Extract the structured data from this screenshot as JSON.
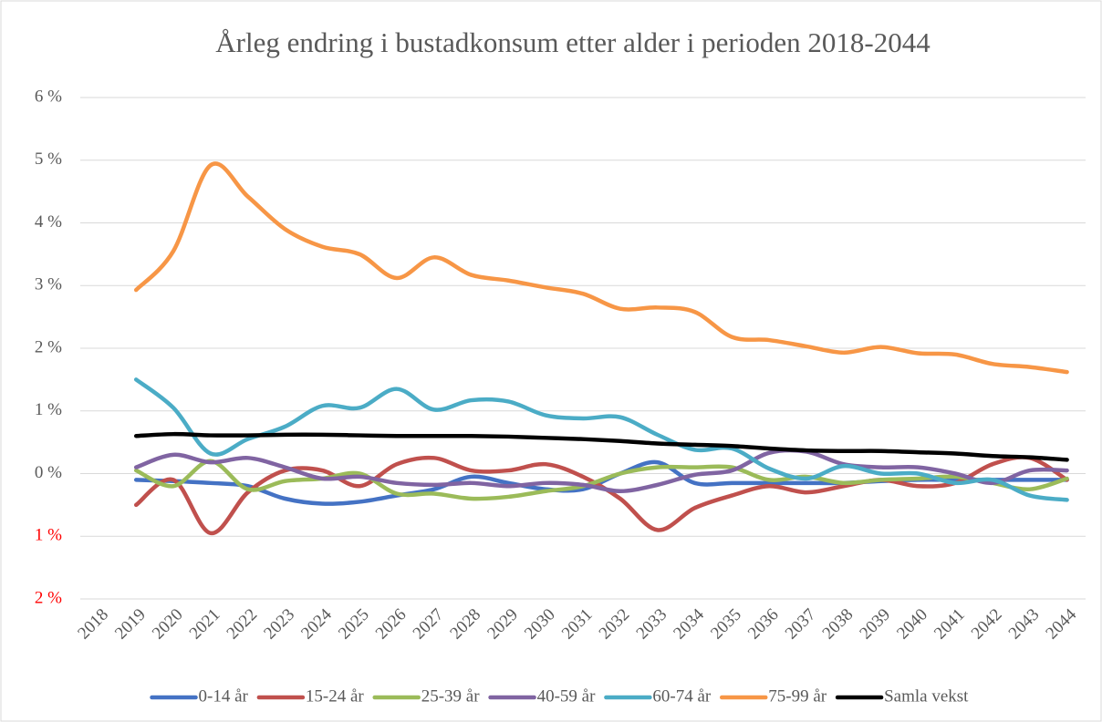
{
  "chart_data": {
    "type": "line",
    "title": "Årleg endring i bustadkonsum etter alder i perioden 2018-2044",
    "categories": [
      "2018",
      "2019",
      "2020",
      "2021",
      "2022",
      "2023",
      "2024",
      "2025",
      "2026",
      "2027",
      "2028",
      "2029",
      "2030",
      "2031",
      "2032",
      "2033",
      "2034",
      "2035",
      "2036",
      "2037",
      "2038",
      "2039",
      "2040",
      "2041",
      "2042",
      "2043",
      "2044"
    ],
    "ylim": [
      -2,
      6
    ],
    "yticks": [
      {
        "value": -2,
        "label": "2 %"
      },
      {
        "value": -1,
        "label": "1 %"
      },
      {
        "value": 0,
        "label": "0 %"
      },
      {
        "value": 1,
        "label": "1 %"
      },
      {
        "value": 2,
        "label": "2 %"
      },
      {
        "value": 3,
        "label": "3 %"
      },
      {
        "value": 4,
        "label": "4 %"
      },
      {
        "value": 5,
        "label": "5 %"
      },
      {
        "value": 6,
        "label": "6 %"
      }
    ],
    "negative_tick_color": "#ff0000",
    "grid": true,
    "smooth": true,
    "legend": "bottom",
    "series": [
      {
        "name": "0-14 år",
        "color": "#4472c4",
        "values": [
          null,
          -0.1,
          -0.12,
          -0.15,
          -0.2,
          -0.4,
          -0.48,
          -0.45,
          -0.35,
          -0.25,
          -0.05,
          -0.15,
          -0.25,
          -0.25,
          0.0,
          0.18,
          -0.15,
          -0.15,
          -0.15,
          -0.15,
          -0.15,
          -0.12,
          -0.1,
          -0.1,
          -0.1,
          -0.1,
          -0.1
        ]
      },
      {
        "name": "15-24 år",
        "color": "#c0504d",
        "values": [
          null,
          -0.5,
          -0.1,
          -0.95,
          -0.3,
          0.05,
          0.05,
          -0.2,
          0.15,
          0.25,
          0.05,
          0.05,
          0.15,
          -0.05,
          -0.4,
          -0.9,
          -0.55,
          -0.35,
          -0.2,
          -0.3,
          -0.2,
          -0.1,
          -0.2,
          -0.15,
          0.15,
          0.25,
          -0.1
        ]
      },
      {
        "name": "25-39 år",
        "color": "#9bbb59",
        "values": [
          null,
          0.05,
          -0.2,
          0.2,
          -0.25,
          -0.12,
          -0.08,
          0.0,
          -0.32,
          -0.32,
          -0.4,
          -0.37,
          -0.28,
          -0.2,
          0.0,
          0.1,
          0.1,
          0.1,
          -0.1,
          -0.05,
          -0.15,
          -0.1,
          -0.08,
          -0.05,
          -0.15,
          -0.25,
          -0.08
        ]
      },
      {
        "name": "40-59 år",
        "color": "#8064a2",
        "values": [
          null,
          0.1,
          0.3,
          0.18,
          0.25,
          0.1,
          -0.08,
          -0.05,
          -0.15,
          -0.18,
          -0.15,
          -0.2,
          -0.15,
          -0.18,
          -0.28,
          -0.18,
          -0.02,
          0.05,
          0.33,
          0.35,
          0.15,
          0.1,
          0.1,
          0.0,
          -0.15,
          0.05,
          0.05
        ]
      },
      {
        "name": "60-74 år",
        "color": "#4bacc6",
        "values": [
          null,
          1.5,
          1.05,
          0.32,
          0.55,
          0.75,
          1.08,
          1.05,
          1.35,
          1.02,
          1.17,
          1.15,
          0.93,
          0.88,
          0.9,
          0.62,
          0.38,
          0.4,
          0.08,
          -0.08,
          0.12,
          0.0,
          0.0,
          -0.15,
          -0.1,
          -0.35,
          -0.42
        ]
      },
      {
        "name": "75-99 år",
        "color": "#f79646",
        "values": [
          null,
          2.93,
          3.55,
          4.92,
          4.42,
          3.9,
          3.62,
          3.5,
          3.12,
          3.45,
          3.17,
          3.08,
          2.97,
          2.87,
          2.63,
          2.65,
          2.58,
          2.18,
          2.13,
          2.03,
          1.93,
          2.02,
          1.92,
          1.9,
          1.75,
          1.7,
          1.62
        ]
      },
      {
        "name": "Samla vekst",
        "color": "#000000",
        "values": [
          null,
          0.6,
          0.63,
          0.61,
          0.61,
          0.62,
          0.62,
          0.61,
          0.6,
          0.6,
          0.6,
          0.59,
          0.57,
          0.55,
          0.52,
          0.48,
          0.46,
          0.44,
          0.4,
          0.37,
          0.36,
          0.36,
          0.34,
          0.32,
          0.28,
          0.26,
          0.22
        ]
      }
    ]
  }
}
